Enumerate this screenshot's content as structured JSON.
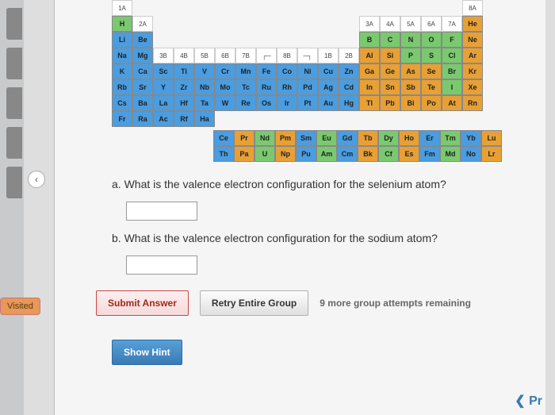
{
  "sidebar": {
    "visited_label": "Visited"
  },
  "headers": {
    "g1": "1A",
    "g2": "2A",
    "g3": "3B",
    "g4": "4B",
    "g5": "5B",
    "g6": "6B",
    "g7": "7B",
    "g8": "┌─",
    "g9": "8B",
    "g10": "─┐",
    "g11": "1B",
    "g12": "2B",
    "g13": "3A",
    "g14": "4A",
    "g15": "5A",
    "g16": "6A",
    "g17": "7A",
    "g18": "8A"
  },
  "rows": {
    "r1": {
      "c1": "H",
      "c18": "He"
    },
    "r2": {
      "c1": "Li",
      "c2": "Be",
      "c13": "B",
      "c14": "C",
      "c15": "N",
      "c16": "O",
      "c17": "F",
      "c18": "Ne"
    },
    "r3": {
      "c1": "Na",
      "c2": "Mg",
      "c13": "Al",
      "c14": "Si",
      "c15": "P",
      "c16": "S",
      "c17": "Cl",
      "c18": "Ar"
    },
    "r4": {
      "c1": "K",
      "c2": "Ca",
      "c3": "Sc",
      "c4": "Ti",
      "c5": "V",
      "c6": "Cr",
      "c7": "Mn",
      "c8": "Fe",
      "c9": "Co",
      "c10": "Ni",
      "c11": "Cu",
      "c12": "Zn",
      "c13": "Ga",
      "c14": "Ge",
      "c15": "As",
      "c16": "Se",
      "c17": "Br",
      "c18": "Kr"
    },
    "r5": {
      "c1": "Rb",
      "c2": "Sr",
      "c3": "Y",
      "c4": "Zr",
      "c5": "Nb",
      "c6": "Mo",
      "c7": "Tc",
      "c8": "Ru",
      "c9": "Rh",
      "c10": "Pd",
      "c11": "Ag",
      "c12": "Cd",
      "c13": "In",
      "c14": "Sn",
      "c15": "Sb",
      "c16": "Te",
      "c17": "I",
      "c18": "Xe"
    },
    "r6": {
      "c1": "Cs",
      "c2": "Ba",
      "c3": "La",
      "c4": "Hf",
      "c5": "Ta",
      "c6": "W",
      "c7": "Re",
      "c8": "Os",
      "c9": "Ir",
      "c10": "Pt",
      "c11": "Au",
      "c12": "Hg",
      "c13": "Tl",
      "c14": "Pb",
      "c15": "Bi",
      "c16": "Po",
      "c17": "At",
      "c18": "Rn"
    },
    "r7": {
      "c1": "Fr",
      "c2": "Ra",
      "c3": "Ac",
      "c4": "Rf",
      "c5": "Ha"
    }
  },
  "lanth": {
    "l1": {
      "c1": "Ce",
      "c2": "Pr",
      "c3": "Nd",
      "c4": "Pm",
      "c5": "Sm",
      "c6": "Eu",
      "c7": "Gd",
      "c8": "Tb",
      "c9": "Dy",
      "c10": "Ho",
      "c11": "Er",
      "c12": "Tm",
      "c13": "Yb",
      "c14": "Lu"
    },
    "l2": {
      "c1": "Th",
      "c2": "Pa",
      "c3": "U",
      "c4": "Np",
      "c5": "Pu",
      "c6": "Am",
      "c7": "Cm",
      "c8": "Bk",
      "c9": "Cf",
      "c10": "Es",
      "c11": "Fm",
      "c12": "Md",
      "c13": "No",
      "c14": "Lr"
    }
  },
  "questions": {
    "a": "a.  What is the valence electron configuration for the selenium atom?",
    "b": "b.  What is the valence electron configuration for the sodium atom?"
  },
  "buttons": {
    "submit": "Submit Answer",
    "retry": "Retry Entire Group",
    "hint": "Show Hint"
  },
  "status": {
    "attempts": "9 more group attempts remaining"
  },
  "nav": {
    "next": "❮ Pr"
  },
  "colors": {
    "blue": "#4a9de0",
    "green": "#7ac96f",
    "orange": "#e8a035"
  }
}
